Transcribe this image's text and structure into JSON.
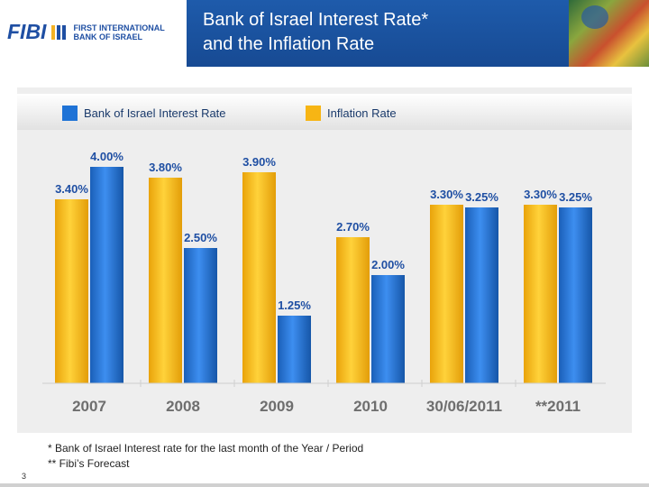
{
  "header": {
    "logo_word": "FIBI",
    "logo_line1": "FIRST INTERNATIONAL",
    "logo_line2": "BANK OF ISRAEL",
    "title_line1": "Bank of Israel Interest Rate*",
    "title_line2": "and the Inflation Rate"
  },
  "colors": {
    "interest": "#1f73d6",
    "inflation": "#f7b514",
    "label": "#1f4fa3",
    "tick": "#6e6e6e"
  },
  "chart_data": {
    "type": "bar",
    "categories": [
      "2007",
      "2008",
      "2009",
      "2010",
      "30/06/2011",
      "**2011"
    ],
    "series": [
      {
        "name": "Bank of Israel Interest Rate",
        "values": [
          4.0,
          2.5,
          1.25,
          2.0,
          3.25,
          3.25
        ],
        "labels": [
          "4.00%",
          "2.50%",
          "1.25%",
          "2.00%",
          "3.25%",
          "3.25%"
        ]
      },
      {
        "name": "Inflation Rate",
        "values": [
          3.4,
          3.8,
          3.9,
          2.7,
          3.3,
          3.3
        ],
        "labels": [
          "3.40%",
          "3.80%",
          "3.90%",
          "2.70%",
          "3.30%",
          "3.30%"
        ]
      }
    ],
    "ylim": [
      0,
      4.25
    ],
    "grid": false,
    "legend_position": "top"
  },
  "footnotes": {
    "star": "*   Bank of Israel Interest rate for the last month of the Year / Period",
    "double_star": "**  Fibi’s Forecast"
  },
  "page_number": "3"
}
